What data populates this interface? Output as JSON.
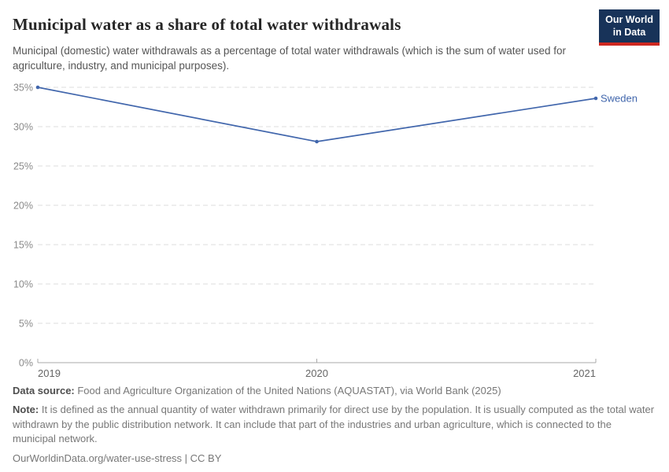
{
  "header": {
    "title": "Municipal water as a share of total water withdrawals",
    "subtitle": "Municipal (domestic) water withdrawals as a percentage of total water withdrawals (which is the sum of water used for agriculture, industry, and municipal purposes).",
    "logo": {
      "line1": "Our World",
      "line2": "in Data"
    }
  },
  "chart_data": {
    "type": "line",
    "title": "Municipal water as a share of total water withdrawals",
    "x": [
      2019,
      2020,
      2021
    ],
    "series": [
      {
        "name": "Sweden",
        "values": [
          35,
          28.1,
          33.6
        ],
        "color": "#4166AC"
      }
    ],
    "ylim": [
      0,
      35
    ],
    "ytick_step": 5,
    "ytick_suffix": "%",
    "grid": "dashed-horizontal",
    "legend_position": "end-of-line"
  },
  "footer": {
    "datasource_label": "Data source:",
    "datasource_text": " Food and Agriculture Organization of the United Nations (AQUASTAT), via World Bank (2025)",
    "note_label": "Note:",
    "note_text": " It is defined as the annual quantity of water withdrawn primarily for direct use by the population. It is usually computed as the total water withdrawn by the public distribution network. It can include that part of the industries and urban agriculture, which is connected to the municipal network.",
    "url_line": "OurWorldinData.org/water-use-stress | CC BY"
  },
  "colors": {
    "line": "#4166AC",
    "grid": "#DCDCDC",
    "axis": "#A8A8A8",
    "logo_bg": "#183359",
    "logo_red": "#CE2820"
  }
}
